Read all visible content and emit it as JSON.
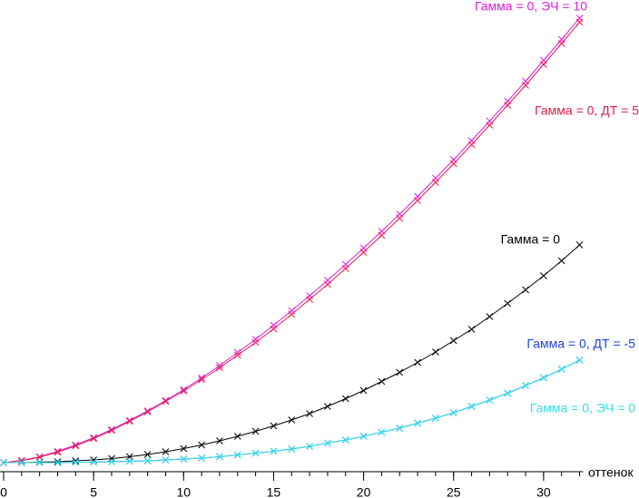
{
  "chart_data": {
    "type": "line",
    "xlabel": "оттенок",
    "x": [
      0,
      1,
      2,
      3,
      4,
      5,
      6,
      7,
      8,
      9,
      10,
      11,
      12,
      13,
      14,
      15,
      16,
      17,
      18,
      19,
      20,
      21,
      22,
      23,
      24,
      25,
      26,
      27,
      28,
      29,
      30,
      31,
      32
    ],
    "xlim": [
      0,
      32.2
    ],
    "xticks": [
      0,
      5,
      10,
      15,
      20,
      25,
      30
    ],
    "ylim": [
      0,
      100
    ],
    "series": [
      {
        "name": "Гамма = 0, ЭЧ = 10",
        "color": "#e020e0",
        "values": [
          2,
          2.5,
          3.3,
          4.5,
          5.9,
          7.5,
          9.3,
          11.3,
          13.4,
          15.7,
          18.1,
          20.7,
          23.4,
          26.3,
          29.2,
          32.3,
          35.5,
          38.8,
          42.2,
          45.7,
          49.3,
          53.0,
          56.8,
          60.7,
          64.7,
          68.8,
          73.0,
          77.3,
          81.7,
          86.1,
          90.7,
          95.3,
          100
        ]
      },
      {
        "name": "Гамма = 0, ДТ = 5",
        "color": "#e0204a",
        "values": [
          2,
          2.4,
          3.2,
          4.3,
          5.7,
          7.3,
          9.1,
          11.1,
          13.2,
          15.5,
          17.8,
          20.3,
          22.9,
          25.7,
          28.5,
          31.5,
          34.7,
          38.0,
          41.3,
          44.8,
          48.4,
          52.1,
          55.9,
          59.8,
          63.8,
          67.9,
          72.1,
          76.4,
          80.8,
          85.2,
          89.8,
          94.4,
          99.1
        ]
      },
      {
        "name": "Гамма = 0",
        "color": "#000000",
        "values": [
          2,
          2.0,
          2.1,
          2.2,
          2.4,
          2.6,
          2.9,
          3.3,
          3.8,
          4.4,
          5.1,
          5.9,
          6.8,
          7.8,
          8.9,
          10.1,
          11.4,
          12.8,
          14.4,
          16.1,
          17.9,
          19.9,
          21.9,
          24.1,
          26.4,
          28.9,
          31.4,
          34.2,
          37.1,
          40.1,
          43.2,
          46.5,
          50
        ]
      },
      {
        "name": "Гамма = 0, ДТ = -5",
        "color": "#2040e0",
        "values": [
          2,
          2.0,
          2.0,
          2.0,
          2.1,
          2.1,
          2.2,
          2.3,
          2.4,
          2.6,
          2.8,
          3.0,
          3.3,
          3.7,
          4.1,
          4.5,
          5.0,
          5.6,
          6.3,
          7.0,
          7.8,
          8.7,
          9.6,
          10.7,
          11.8,
          13.0,
          14.4,
          15.8,
          17.3,
          19.0,
          20.7,
          22.6,
          24.6
        ]
      },
      {
        "name": "Гамма = 0, ЭЧ = 0",
        "color": "#30e0e8",
        "values": [
          2,
          2.0,
          2.0,
          2.0,
          2.1,
          2.1,
          2.2,
          2.3,
          2.4,
          2.6,
          2.8,
          3.0,
          3.3,
          3.7,
          4.1,
          4.5,
          5.0,
          5.6,
          6.3,
          7.0,
          7.8,
          8.7,
          9.6,
          10.7,
          11.8,
          13.0,
          14.4,
          15.8,
          17.3,
          19.0,
          20.7,
          22.6,
          24.6
        ]
      }
    ]
  }
}
